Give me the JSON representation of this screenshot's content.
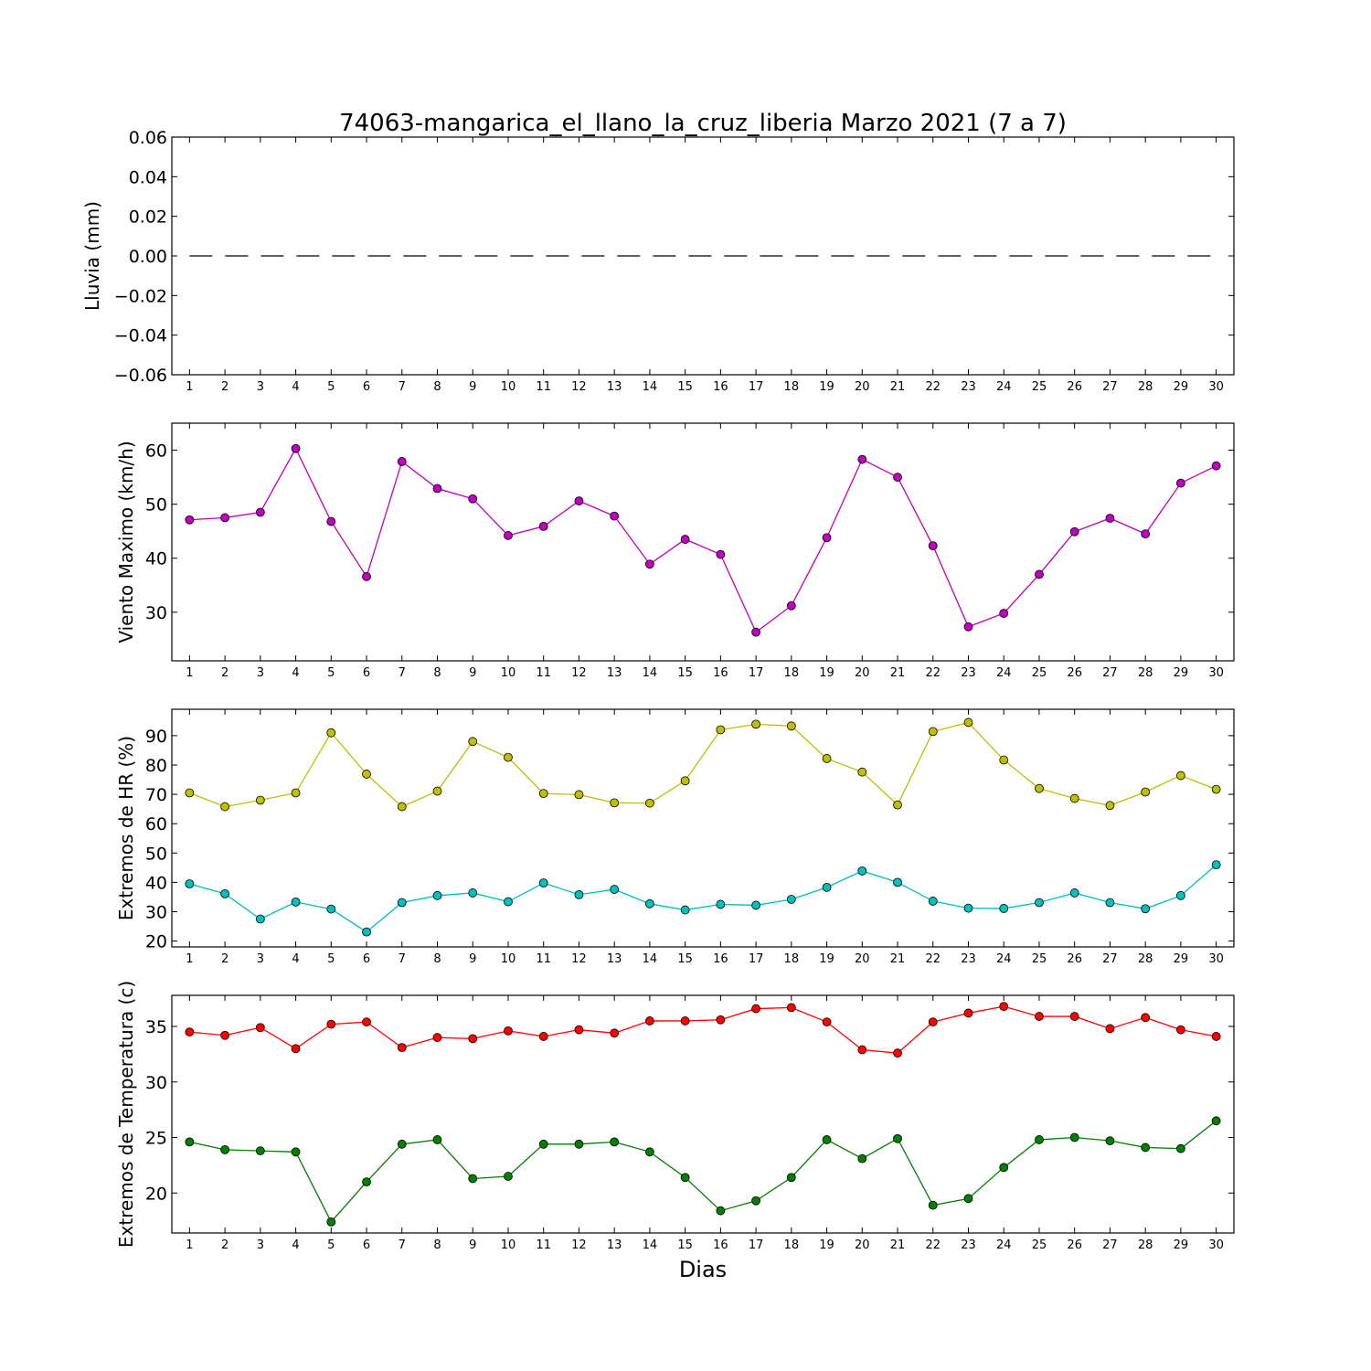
{
  "chart_data": [
    {
      "type": "line",
      "title": "74063-mangarica_el_llano_la_cruz_liberia Marzo 2021  (7 a 7)",
      "xlabel": "",
      "ylabel": "Lluvia (mm)",
      "ylim": [
        -0.06,
        0.06
      ],
      "yticks": [
        0.06,
        0.04,
        0.02,
        0.0,
        -0.02,
        -0.04,
        -0.06
      ],
      "ytick_labels": [
        "0.06",
        "0.04",
        "0.02",
        "0.00",
        "−0.02",
        "−0.04",
        "−0.06"
      ],
      "xlim": [
        0.5,
        30.5
      ],
      "x": [
        1,
        2,
        3,
        4,
        5,
        6,
        7,
        8,
        9,
        10,
        11,
        12,
        13,
        14,
        15,
        16,
        17,
        18,
        19,
        20,
        21,
        22,
        23,
        24,
        25,
        26,
        27,
        28,
        29,
        30
      ],
      "series": [
        {
          "values": [
            0,
            0,
            0,
            0,
            0,
            0,
            0,
            0,
            0,
            0,
            0,
            0,
            0,
            0,
            0,
            0,
            0,
            0,
            0,
            0,
            0,
            0,
            0,
            0,
            0,
            0,
            0,
            0,
            0,
            0
          ],
          "color": "#000000",
          "style": "dashed"
        }
      ],
      "grid": false
    },
    {
      "type": "line",
      "title": "",
      "xlabel": "",
      "ylabel": "Viento Maximo (km/h)",
      "ylim": [
        21,
        65
      ],
      "yticks": [
        30,
        40,
        50,
        60
      ],
      "ytick_labels": [
        "30",
        "40",
        "50",
        "60"
      ],
      "xlim": [
        0.5,
        30.5
      ],
      "x": [
        1,
        2,
        3,
        4,
        5,
        6,
        7,
        8,
        9,
        10,
        11,
        12,
        13,
        14,
        15,
        16,
        17,
        18,
        19,
        20,
        21,
        22,
        23,
        24,
        25,
        26,
        27,
        28,
        29,
        30
      ],
      "series": [
        {
          "values": [
            47.1,
            47.5,
            48.5,
            60.3,
            46.8,
            36.6,
            57.9,
            52.9,
            51.0,
            44.2,
            45.9,
            50.6,
            47.8,
            38.9,
            43.5,
            40.7,
            26.3,
            31.2,
            43.8,
            58.3,
            55.0,
            42.3,
            27.3,
            29.8,
            37.0,
            44.9,
            47.4,
            44.5,
            53.9,
            57.1
          ],
          "color": "#bf00bf",
          "marker": "circle"
        }
      ],
      "grid": false
    },
    {
      "type": "line",
      "title": "",
      "xlabel": "",
      "ylabel": "Extremos de HR (%)",
      "ylim": [
        18,
        99
      ],
      "yticks": [
        20,
        30,
        40,
        50,
        60,
        70,
        80,
        90
      ],
      "ytick_labels": [
        "20",
        "30",
        "40",
        "50",
        "60",
        "70",
        "80",
        "90"
      ],
      "xlim": [
        0.5,
        30.5
      ],
      "x": [
        1,
        2,
        3,
        4,
        5,
        6,
        7,
        8,
        9,
        10,
        11,
        12,
        13,
        14,
        15,
        16,
        17,
        18,
        19,
        20,
        21,
        22,
        23,
        24,
        25,
        26,
        27,
        28,
        29,
        30
      ],
      "series": [
        {
          "values": [
            70.5,
            65.8,
            68.0,
            70.5,
            91.0,
            76.9,
            65.8,
            71.1,
            88.0,
            82.6,
            70.3,
            69.9,
            67.1,
            67.0,
            74.6,
            92.0,
            93.9,
            93.3,
            82.2,
            77.6,
            66.4,
            91.4,
            94.5,
            81.7,
            72.0,
            68.6,
            66.2,
            70.8,
            76.4,
            71.7
          ],
          "color": "#bfbf00",
          "marker": "circle"
        },
        {
          "values": [
            39.5,
            36.1,
            27.5,
            33.3,
            30.9,
            23.1,
            33.1,
            35.5,
            36.4,
            33.4,
            39.8,
            35.8,
            37.6,
            32.7,
            30.6,
            32.5,
            32.2,
            34.2,
            38.3,
            43.9,
            40.0,
            33.6,
            31.2,
            31.1,
            33.1,
            36.4,
            33.1,
            31.0,
            35.5,
            46.0
          ],
          "color": "#00bfbf",
          "marker": "circle"
        }
      ],
      "grid": false
    },
    {
      "type": "line",
      "title": "",
      "xlabel": "Dias",
      "ylabel": "Extremos de Temperatura (c)",
      "ylim": [
        16.4,
        37.8
      ],
      "yticks": [
        20,
        25,
        30,
        35
      ],
      "ytick_labels": [
        "20",
        "25",
        "30",
        "35"
      ],
      "xlim": [
        0.5,
        30.5
      ],
      "x": [
        1,
        2,
        3,
        4,
        5,
        6,
        7,
        8,
        9,
        10,
        11,
        12,
        13,
        14,
        15,
        16,
        17,
        18,
        19,
        20,
        21,
        22,
        23,
        24,
        25,
        26,
        27,
        28,
        29,
        30
      ],
      "series": [
        {
          "values": [
            34.5,
            34.2,
            34.9,
            33.0,
            35.2,
            35.4,
            33.1,
            34.0,
            33.9,
            34.6,
            34.1,
            34.7,
            34.4,
            35.5,
            35.5,
            35.6,
            36.6,
            36.7,
            35.4,
            32.9,
            32.6,
            35.4,
            36.2,
            36.8,
            35.9,
            35.9,
            34.8,
            35.8,
            34.7,
            34.1
          ],
          "color": "#ff0000",
          "marker": "circle"
        },
        {
          "values": [
            24.6,
            23.9,
            23.8,
            23.7,
            17.4,
            21.0,
            24.4,
            24.8,
            21.3,
            21.5,
            24.4,
            24.4,
            24.6,
            23.7,
            21.4,
            18.4,
            19.3,
            21.4,
            24.8,
            23.1,
            24.9,
            18.9,
            19.5,
            22.3,
            24.8,
            25.0,
            24.7,
            24.1,
            24.0,
            26.5
          ],
          "color": "#007f00",
          "marker": "circle"
        }
      ],
      "grid": false
    }
  ]
}
